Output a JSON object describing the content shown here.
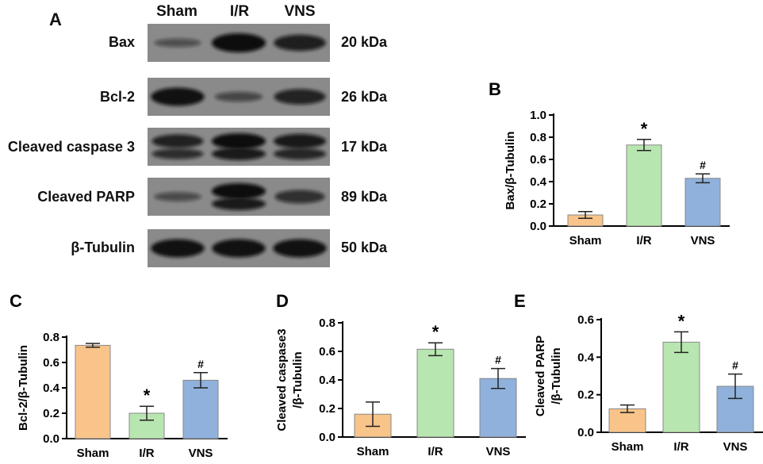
{
  "panel_a": {
    "letter": "A",
    "lanes": [
      "Sham",
      "I/R",
      "VNS"
    ],
    "blots": [
      {
        "protein": "Bax",
        "kda": "20 kDa",
        "intensities": [
          0.25,
          1.0,
          0.8
        ],
        "double": [
          false,
          false,
          false
        ]
      },
      {
        "protein": "Bcl-2",
        "kda": "26 kDa",
        "intensities": [
          0.95,
          0.35,
          0.75
        ],
        "double": [
          false,
          false,
          false
        ]
      },
      {
        "protein": "Cleaved caspase 3",
        "kda": "17 kDa",
        "intensities": [
          0.75,
          1.0,
          0.85
        ],
        "double": [
          true,
          true,
          true
        ]
      },
      {
        "protein": "Cleaved PARP",
        "kda": "89 kDa",
        "intensities": [
          0.3,
          1.0,
          0.6
        ],
        "double": [
          false,
          true,
          false
        ]
      },
      {
        "protein": "β-Tubulin",
        "kda": "50 kDa",
        "intensities": [
          0.95,
          0.95,
          0.95
        ],
        "double": [
          false,
          false,
          false
        ]
      }
    ]
  },
  "colors": {
    "sham": "#f9c48a",
    "ir": "#b8e6b0",
    "vns": "#8fb1dc",
    "blot_bg": "#8a8a8a",
    "band": "#0e0e0e"
  },
  "chart_data": [
    {
      "letter": "B",
      "type": "bar",
      "categories": [
        "Sham",
        "I/R",
        "VNS"
      ],
      "values": [
        0.1,
        0.73,
        0.43
      ],
      "errors": [
        0.03,
        0.05,
        0.04
      ],
      "annotations": [
        "",
        "*",
        "#"
      ],
      "ylabel": [
        "Bax/β-Tubulin"
      ],
      "ylim": [
        0,
        1.0
      ],
      "yticks": [
        "0.0",
        "0.2",
        "0.4",
        "0.6",
        "0.8",
        "1.0"
      ]
    },
    {
      "letter": "C",
      "type": "bar",
      "categories": [
        "Sham",
        "I/R",
        "VNS"
      ],
      "values": [
        0.735,
        0.2,
        0.46
      ],
      "errors": [
        0.015,
        0.055,
        0.06
      ],
      "annotations": [
        "",
        "*",
        "#"
      ],
      "ylabel": [
        "Bcl-2/β-Tubulin"
      ],
      "ylim": [
        0,
        0.8
      ],
      "yticks": [
        "0.0",
        "0.2",
        "0.4",
        "0.6",
        "0.8"
      ]
    },
    {
      "letter": "D",
      "type": "bar",
      "categories": [
        "Sham",
        "I/R",
        "VNS"
      ],
      "values": [
        0.16,
        0.615,
        0.41
      ],
      "errors": [
        0.085,
        0.045,
        0.07
      ],
      "annotations": [
        "",
        "*",
        "#"
      ],
      "ylabel": [
        "Cleaved caspase3",
        "/β-Tubulin"
      ],
      "ylim": [
        0,
        0.8
      ],
      "yticks": [
        "0.0",
        "0.2",
        "0.4",
        "0.6",
        "0.8"
      ]
    },
    {
      "letter": "E",
      "type": "bar",
      "categories": [
        "Sham",
        "I/R",
        "VNS"
      ],
      "values": [
        0.125,
        0.48,
        0.245
      ],
      "errors": [
        0.02,
        0.055,
        0.065
      ],
      "annotations": [
        "",
        "*",
        "#"
      ],
      "ylabel": [
        "Cleaved PARP",
        "/β-Tubulin"
      ],
      "ylim": [
        0,
        0.6
      ],
      "yticks": [
        "0.0",
        "0.2",
        "0.4",
        "0.6"
      ]
    }
  ]
}
